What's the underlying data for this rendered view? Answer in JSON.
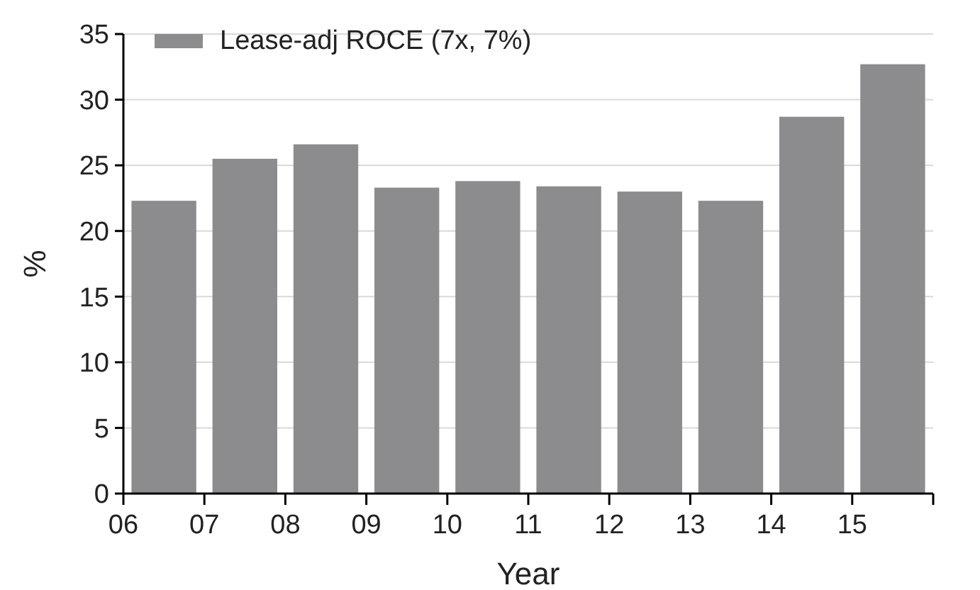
{
  "chart_data": {
    "type": "bar",
    "xlabel": "Year",
    "ylabel": "%",
    "x": [
      2006.5,
      2007.5,
      2008.5,
      2009.5,
      2010.5,
      2011.5,
      2012.5,
      2013.5,
      2014.5,
      2015.5
    ],
    "series": [
      {
        "name": "Lease-adj ROCE (7x, 7%)",
        "color": "#8c8c8e",
        "values": [
          22.3,
          25.5,
          26.6,
          23.3,
          23.8,
          23.4,
          23.0,
          22.3,
          28.7,
          32.7
        ]
      }
    ],
    "xlim": [
      2006,
      2016
    ],
    "xticks": [
      {
        "value": 2006,
        "label": "06"
      },
      {
        "value": 2007,
        "label": "07"
      },
      {
        "value": 2008,
        "label": "08"
      },
      {
        "value": 2009,
        "label": "09"
      },
      {
        "value": 2010,
        "label": "10"
      },
      {
        "value": 2011,
        "label": "11"
      },
      {
        "value": 2012,
        "label": "12"
      },
      {
        "value": 2013,
        "label": "13"
      },
      {
        "value": 2014,
        "label": "14"
      },
      {
        "value": 2015,
        "label": "15"
      },
      {
        "value": 2016,
        "label": null
      }
    ],
    "ylim": [
      0,
      35
    ],
    "yticks": [
      0,
      5,
      10,
      15,
      20,
      25,
      30,
      35
    ],
    "grid": "y",
    "legend": "top left"
  }
}
